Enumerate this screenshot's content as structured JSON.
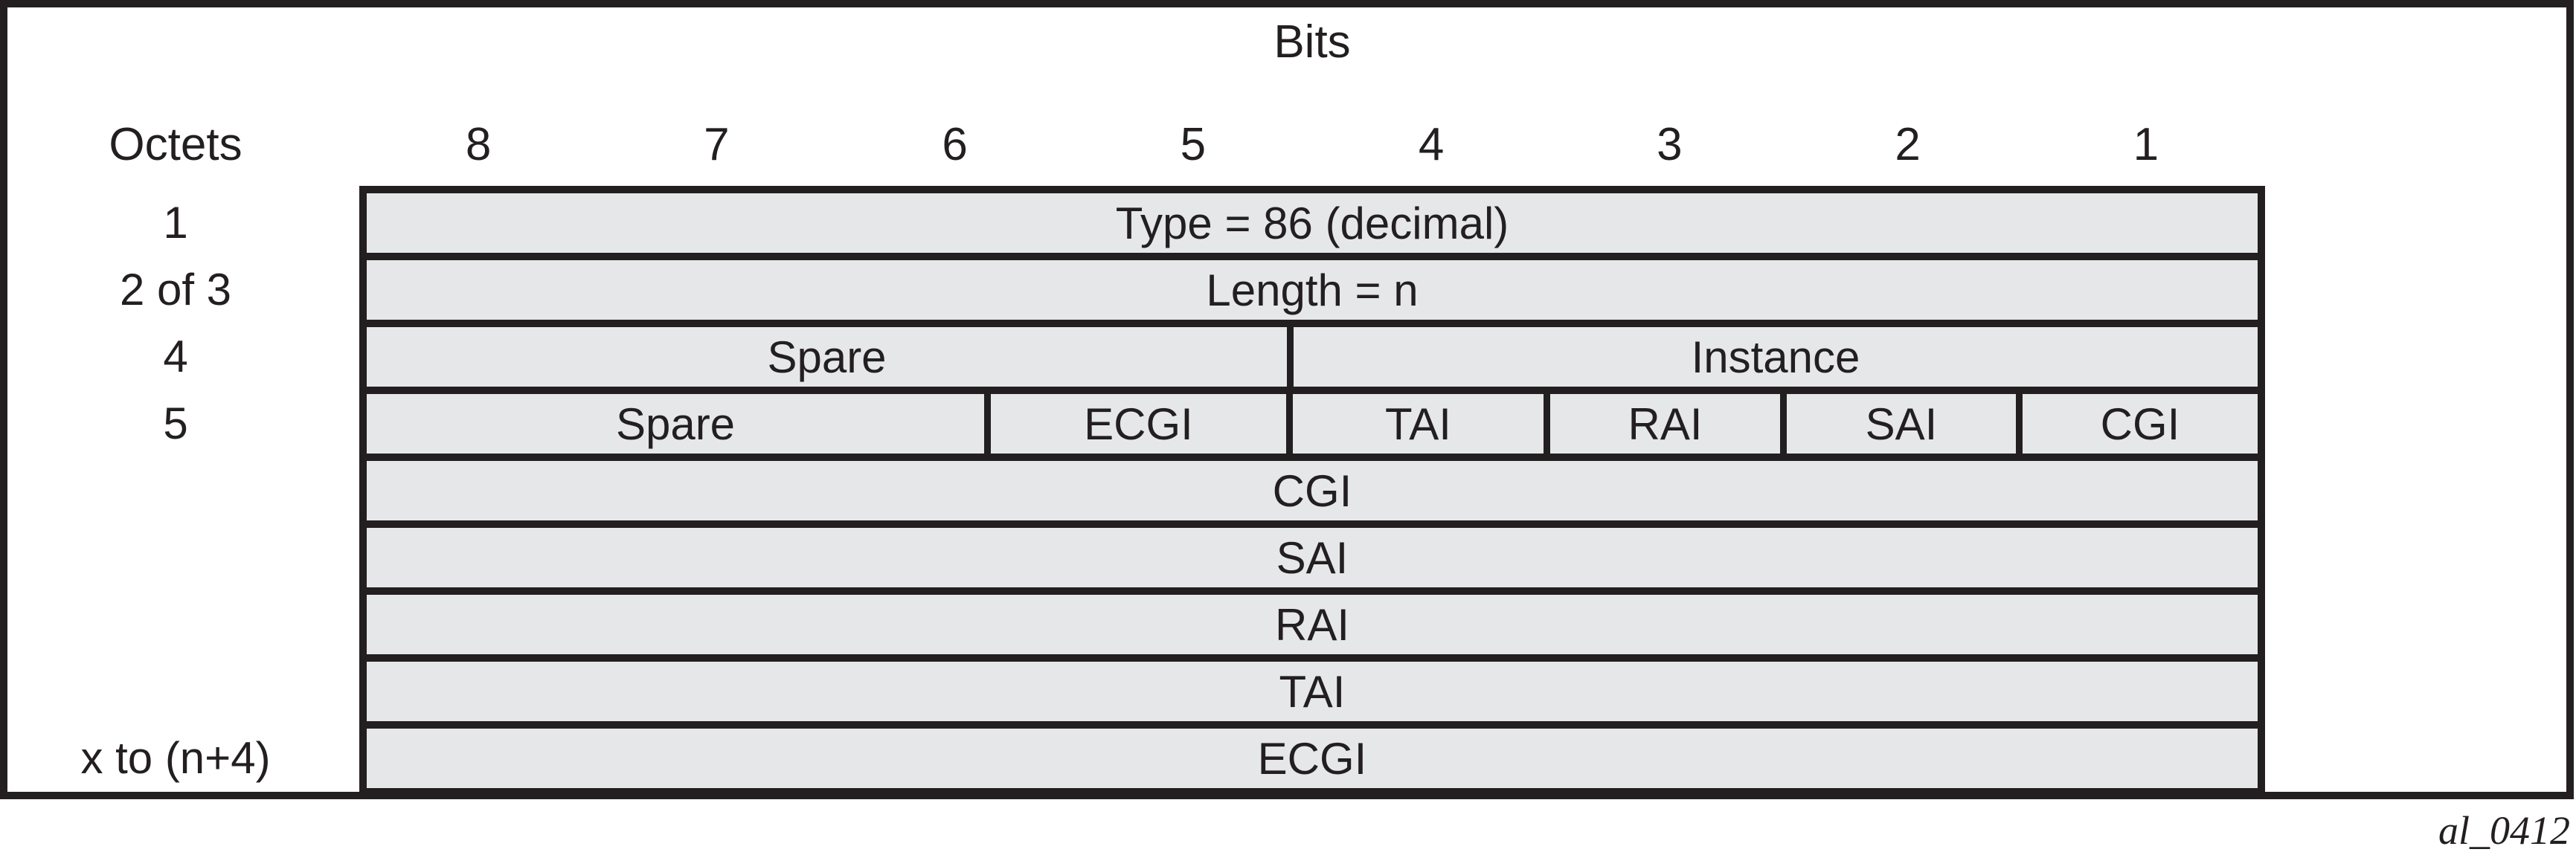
{
  "figure": {
    "bits_label": "Bits",
    "octets_label": "Octets",
    "bit_numbers": [
      "8",
      "7",
      "6",
      "5",
      "4",
      "3",
      "2",
      "1"
    ],
    "caption": "al_0412"
  },
  "table": {
    "rows": [
      {
        "octet": "1",
        "cells": [
          {
            "label": "Type = 86 (decimal)"
          }
        ]
      },
      {
        "octet": "2 of 3",
        "cells": [
          {
            "label": "Length = n"
          }
        ]
      },
      {
        "octet": "4",
        "cells": [
          {
            "label": "Spare"
          },
          {
            "label": "Instance"
          }
        ]
      },
      {
        "octet": "5",
        "cells": [
          {
            "label": "Spare"
          },
          {
            "label": "ECGI"
          },
          {
            "label": "TAI"
          },
          {
            "label": "RAI"
          },
          {
            "label": "SAI"
          },
          {
            "label": "CGI"
          }
        ]
      },
      {
        "octet": "",
        "cells": [
          {
            "label": "CGI"
          }
        ]
      },
      {
        "octet": "",
        "cells": [
          {
            "label": "SAI"
          }
        ]
      },
      {
        "octet": "",
        "cells": [
          {
            "label": "RAI"
          }
        ]
      },
      {
        "octet": "",
        "cells": [
          {
            "label": "TAI"
          }
        ]
      },
      {
        "octet": "x to (n+4)",
        "cells": [
          {
            "label": "ECGI"
          }
        ]
      }
    ]
  },
  "colors": {
    "line": "#231f20",
    "cell_fill": "#e6e7e8"
  }
}
